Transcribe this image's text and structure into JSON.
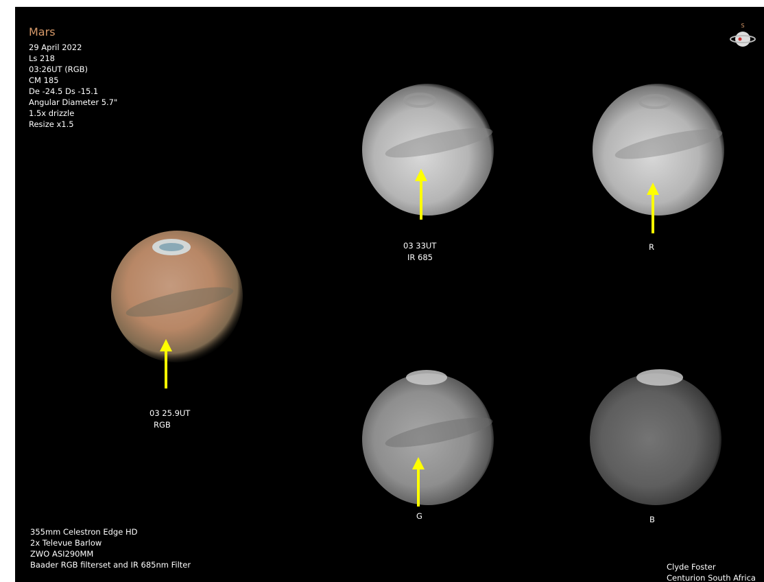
{
  "header": {
    "title": "Mars",
    "details": [
      "29 April 2022",
      " Ls 218",
      "03:26UT  (RGB)",
      "CM  185",
      "De -24.5  Ds -15.1",
      "Angular Diameter 5.7\"",
      "1.5x drizzle",
      "Resize x1.5"
    ]
  },
  "compass": {
    "label": "S"
  },
  "images": [
    {
      "label_lines": [
        "03 25.9UT",
        "RGB"
      ]
    },
    {
      "label_lines": [
        "03 33UT",
        "IR 685"
      ]
    },
    {
      "label_lines": [
        "R"
      ]
    },
    {
      "label_lines": [
        "G"
      ]
    },
    {
      "label_lines": [
        "B"
      ]
    }
  ],
  "equipment": [
    "355mm Celestron Edge HD",
    "2x Televue Barlow",
    "ZWO ASI290MM",
    "Baader  RGB filterset and  IR 685nm Filter"
  ],
  "credit": [
    "Clyde Foster",
    "Centurion South Africa"
  ]
}
